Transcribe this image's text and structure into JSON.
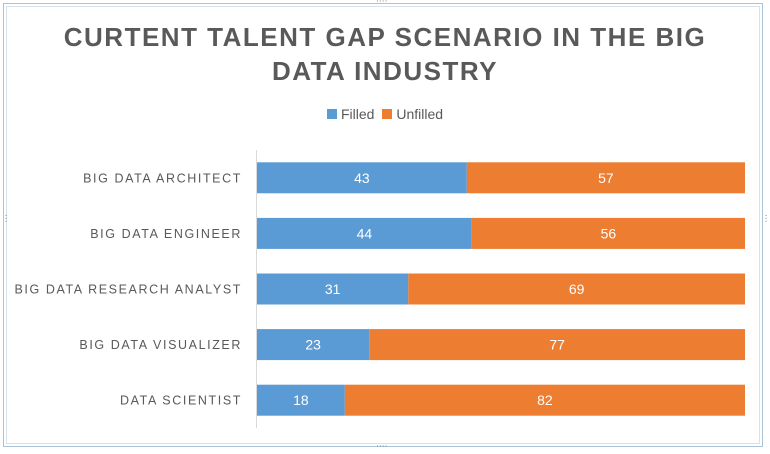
{
  "chart_data": {
    "type": "bar",
    "orientation": "horizontal",
    "stacked": true,
    "title": "CURTENT TALENT GAP SCENARIO IN THE BIG DATA INDUSTRY",
    "categories": [
      "BIG DATA ARCHITECT",
      "BIG DATA ENGINEER",
      "BIG DATA RESEARCH ANALYST",
      "BIG DATA VISUALIZER",
      "DATA SCIENTIST"
    ],
    "series": [
      {
        "name": "Filled",
        "values": [
          43,
          44,
          31,
          23,
          18
        ],
        "color": "#5b9bd5"
      },
      {
        "name": "Unfilled",
        "values": [
          57,
          56,
          69,
          77,
          82
        ],
        "color": "#ed7d31"
      }
    ],
    "xlim": [
      0,
      100
    ],
    "legend_position": "top",
    "grid": false
  }
}
